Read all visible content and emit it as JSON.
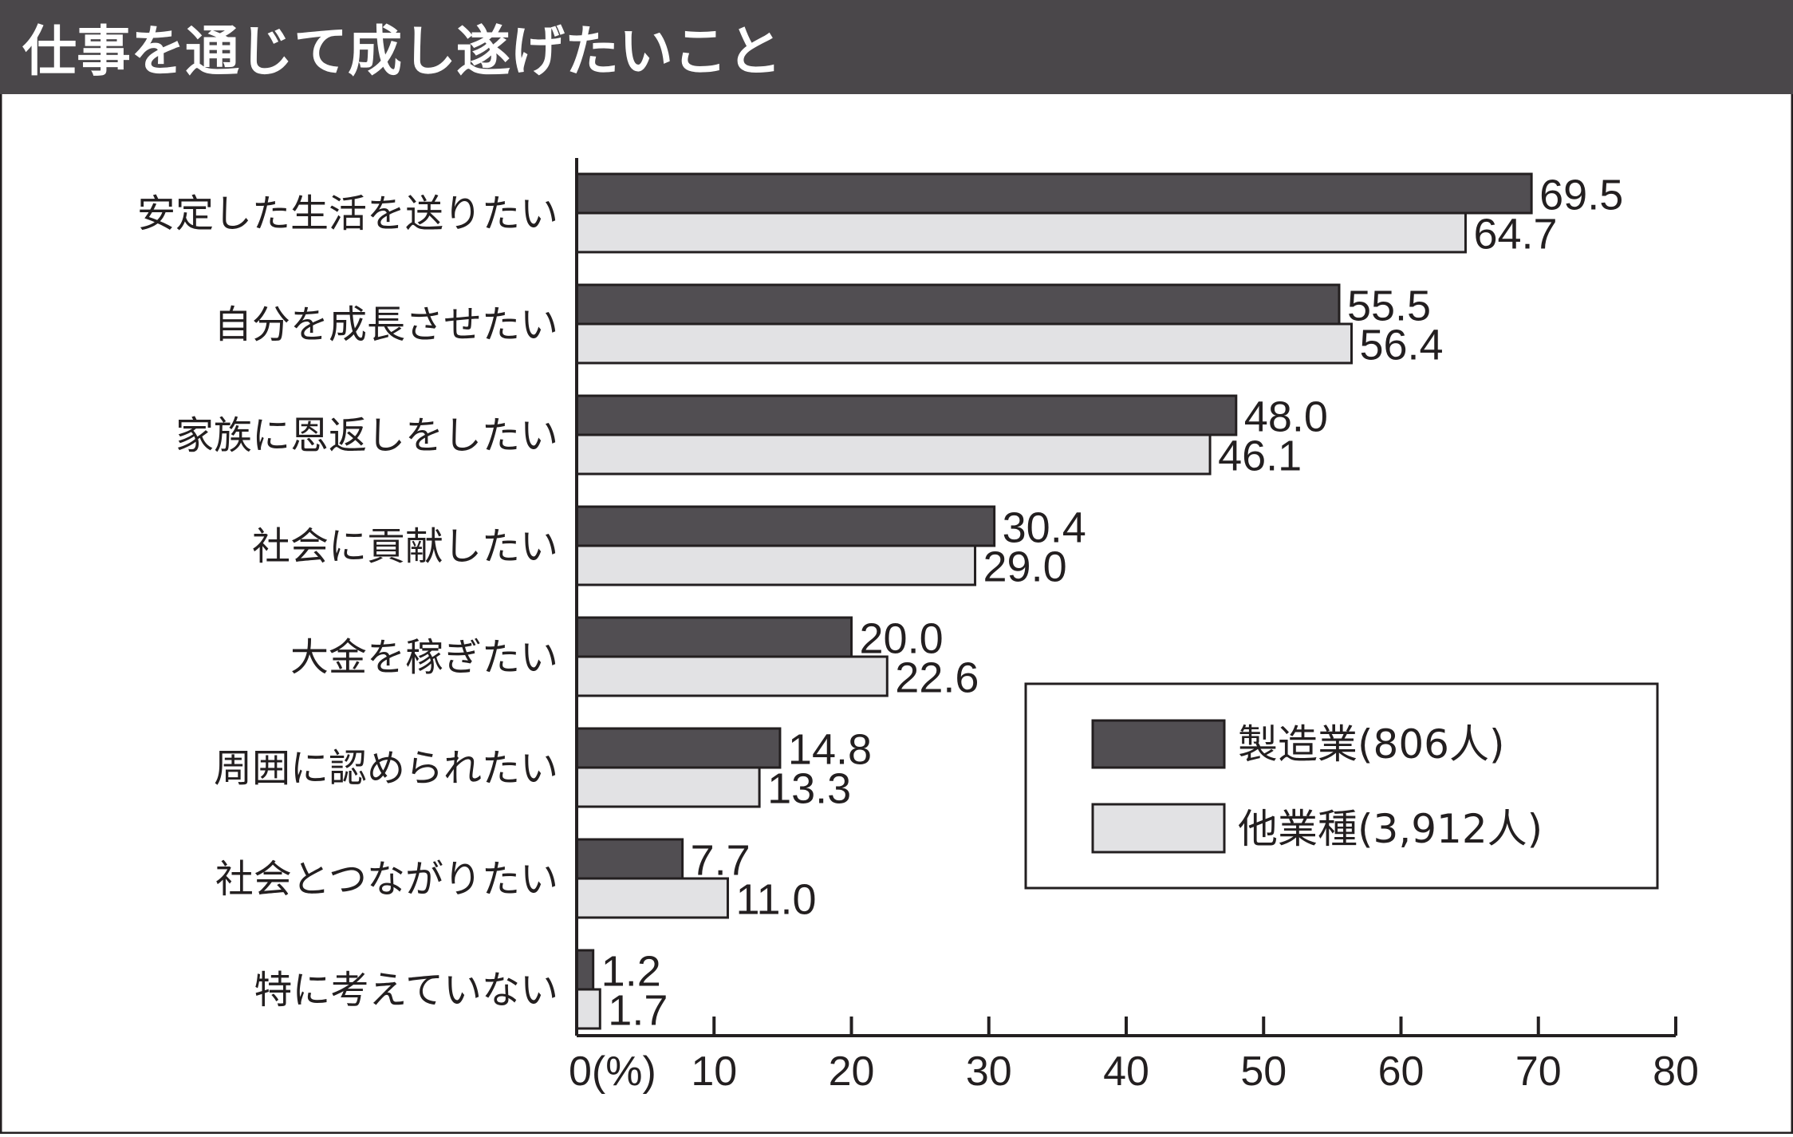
{
  "chart_data": {
    "type": "bar",
    "orientation": "horizontal",
    "title": "仕事を通じて成し遂げたいこと",
    "categories": [
      "安定した生活を送りたい",
      "自分を成長させたい",
      "家族に恩返しをしたい",
      "社会に貢献したい",
      "大金を稼ぎたい",
      "周囲に認められたい",
      "社会とつながりたい",
      "特に考えていない"
    ],
    "series": [
      {
        "name": "製造業(806人)",
        "color": "#514e52",
        "values": [
          69.5,
          55.5,
          48.0,
          30.4,
          20.0,
          14.8,
          7.7,
          1.2
        ],
        "labels": [
          "69.5",
          "55.5",
          "48.0",
          "30.4",
          "20.0",
          "14.8",
          "7.7",
          "1.2"
        ]
      },
      {
        "name": "他業種(3,912人)",
        "color": "#e2e2e4",
        "values": [
          64.7,
          56.4,
          46.1,
          29.0,
          22.6,
          13.3,
          11.0,
          1.7
        ],
        "labels": [
          "64.7",
          "56.4",
          "46.1",
          "29.0",
          "22.6",
          "13.3",
          "11.0",
          "1.7"
        ]
      }
    ],
    "xlim": [
      0,
      80
    ],
    "xticks": [
      "0(%)",
      "10",
      "20",
      "30",
      "40",
      "50",
      "60",
      "70",
      "80"
    ],
    "xtick_values": [
      0,
      10,
      20,
      30,
      40,
      50,
      60,
      70,
      80
    ],
    "legend_position": "bottom-right",
    "grid": false
  }
}
